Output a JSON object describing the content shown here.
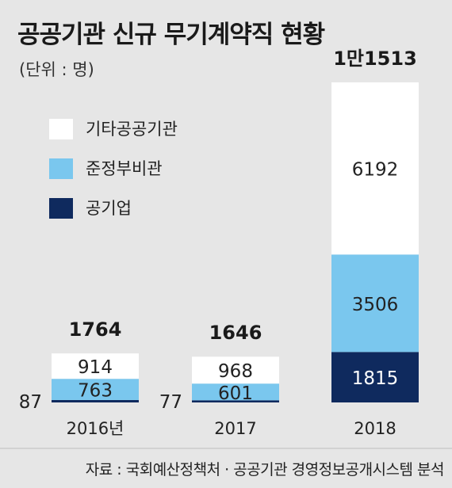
{
  "title": "공공기관 신규 무기계약직 현황",
  "unit_label": "(단위 : 명)",
  "footer": "자료 : 국회예산정책처 · 공공기관 경영정보공개시스템 분석",
  "chart_data": {
    "type": "bar",
    "stacked": true,
    "categories": [
      "2016년",
      "2017",
      "2018"
    ],
    "totals": [
      "1764",
      "1646",
      "1만1513"
    ],
    "series": [
      {
        "name": "공기업",
        "color": "#0f2a5e",
        "values": [
          87,
          77,
          1815
        ]
      },
      {
        "name": "준정부비관",
        "color": "#7ac7ee",
        "values": [
          763,
          601,
          3506
        ]
      },
      {
        "name": "기타공공기관",
        "color": "#ffffff",
        "values": [
          914,
          968,
          6192
        ]
      }
    ],
    "legend_position": "top-left",
    "grid": false
  }
}
